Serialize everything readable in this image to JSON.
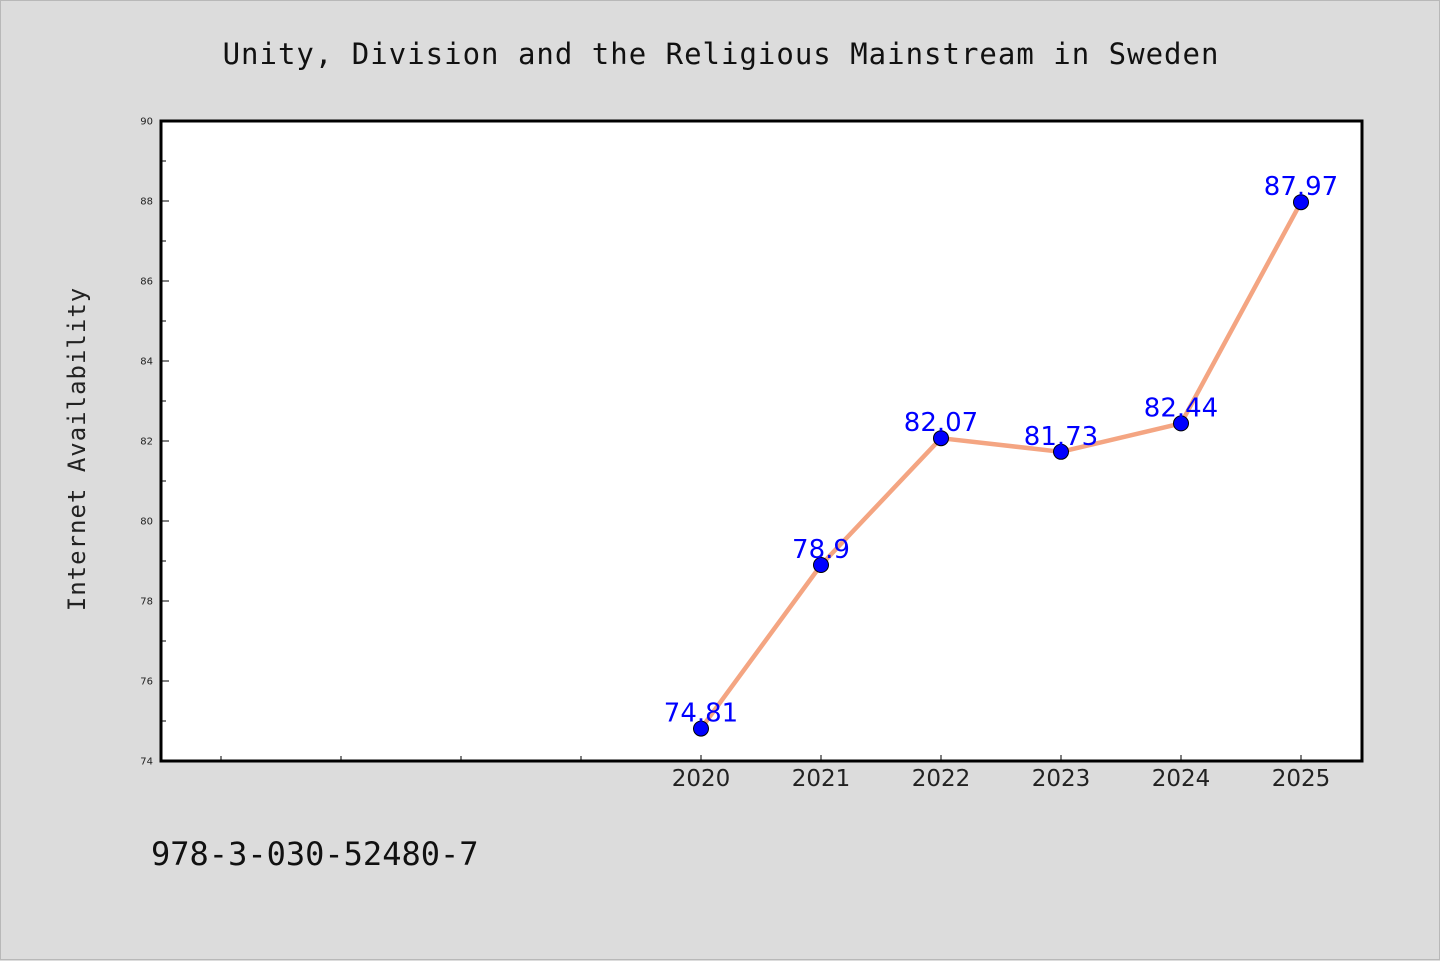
{
  "page": {
    "background": "#dcdcdc",
    "footer_text": "978-3-030-52480-7"
  },
  "chart_data": {
    "type": "line",
    "title": "Unity, Division and the Religious Mainstream in Sweden",
    "xlabel": "",
    "ylabel": "Internet Availability",
    "categories": [
      "2020",
      "2021",
      "2022",
      "2023",
      "2024",
      "2025"
    ],
    "series": [
      {
        "values": [
          74.81,
          78.9,
          82.07,
          81.73,
          82.44,
          87.97
        ],
        "data_labels": [
          "74.81",
          "78.9",
          "82.07",
          "81.73",
          "82.44",
          "87.97"
        ],
        "line_color": "#f4a582",
        "marker_color": "#0000ff",
        "label_color": "#0000ff"
      }
    ],
    "ylim": [
      74,
      90
    ],
    "yticks": [
      74,
      76,
      78,
      80,
      82,
      84,
      86,
      88,
      90
    ],
    "ytick_labels": [
      "74",
      "76",
      "78",
      "80",
      "82",
      "84",
      "86",
      "88",
      "90"
    ],
    "grid": false,
    "legend": "none"
  }
}
